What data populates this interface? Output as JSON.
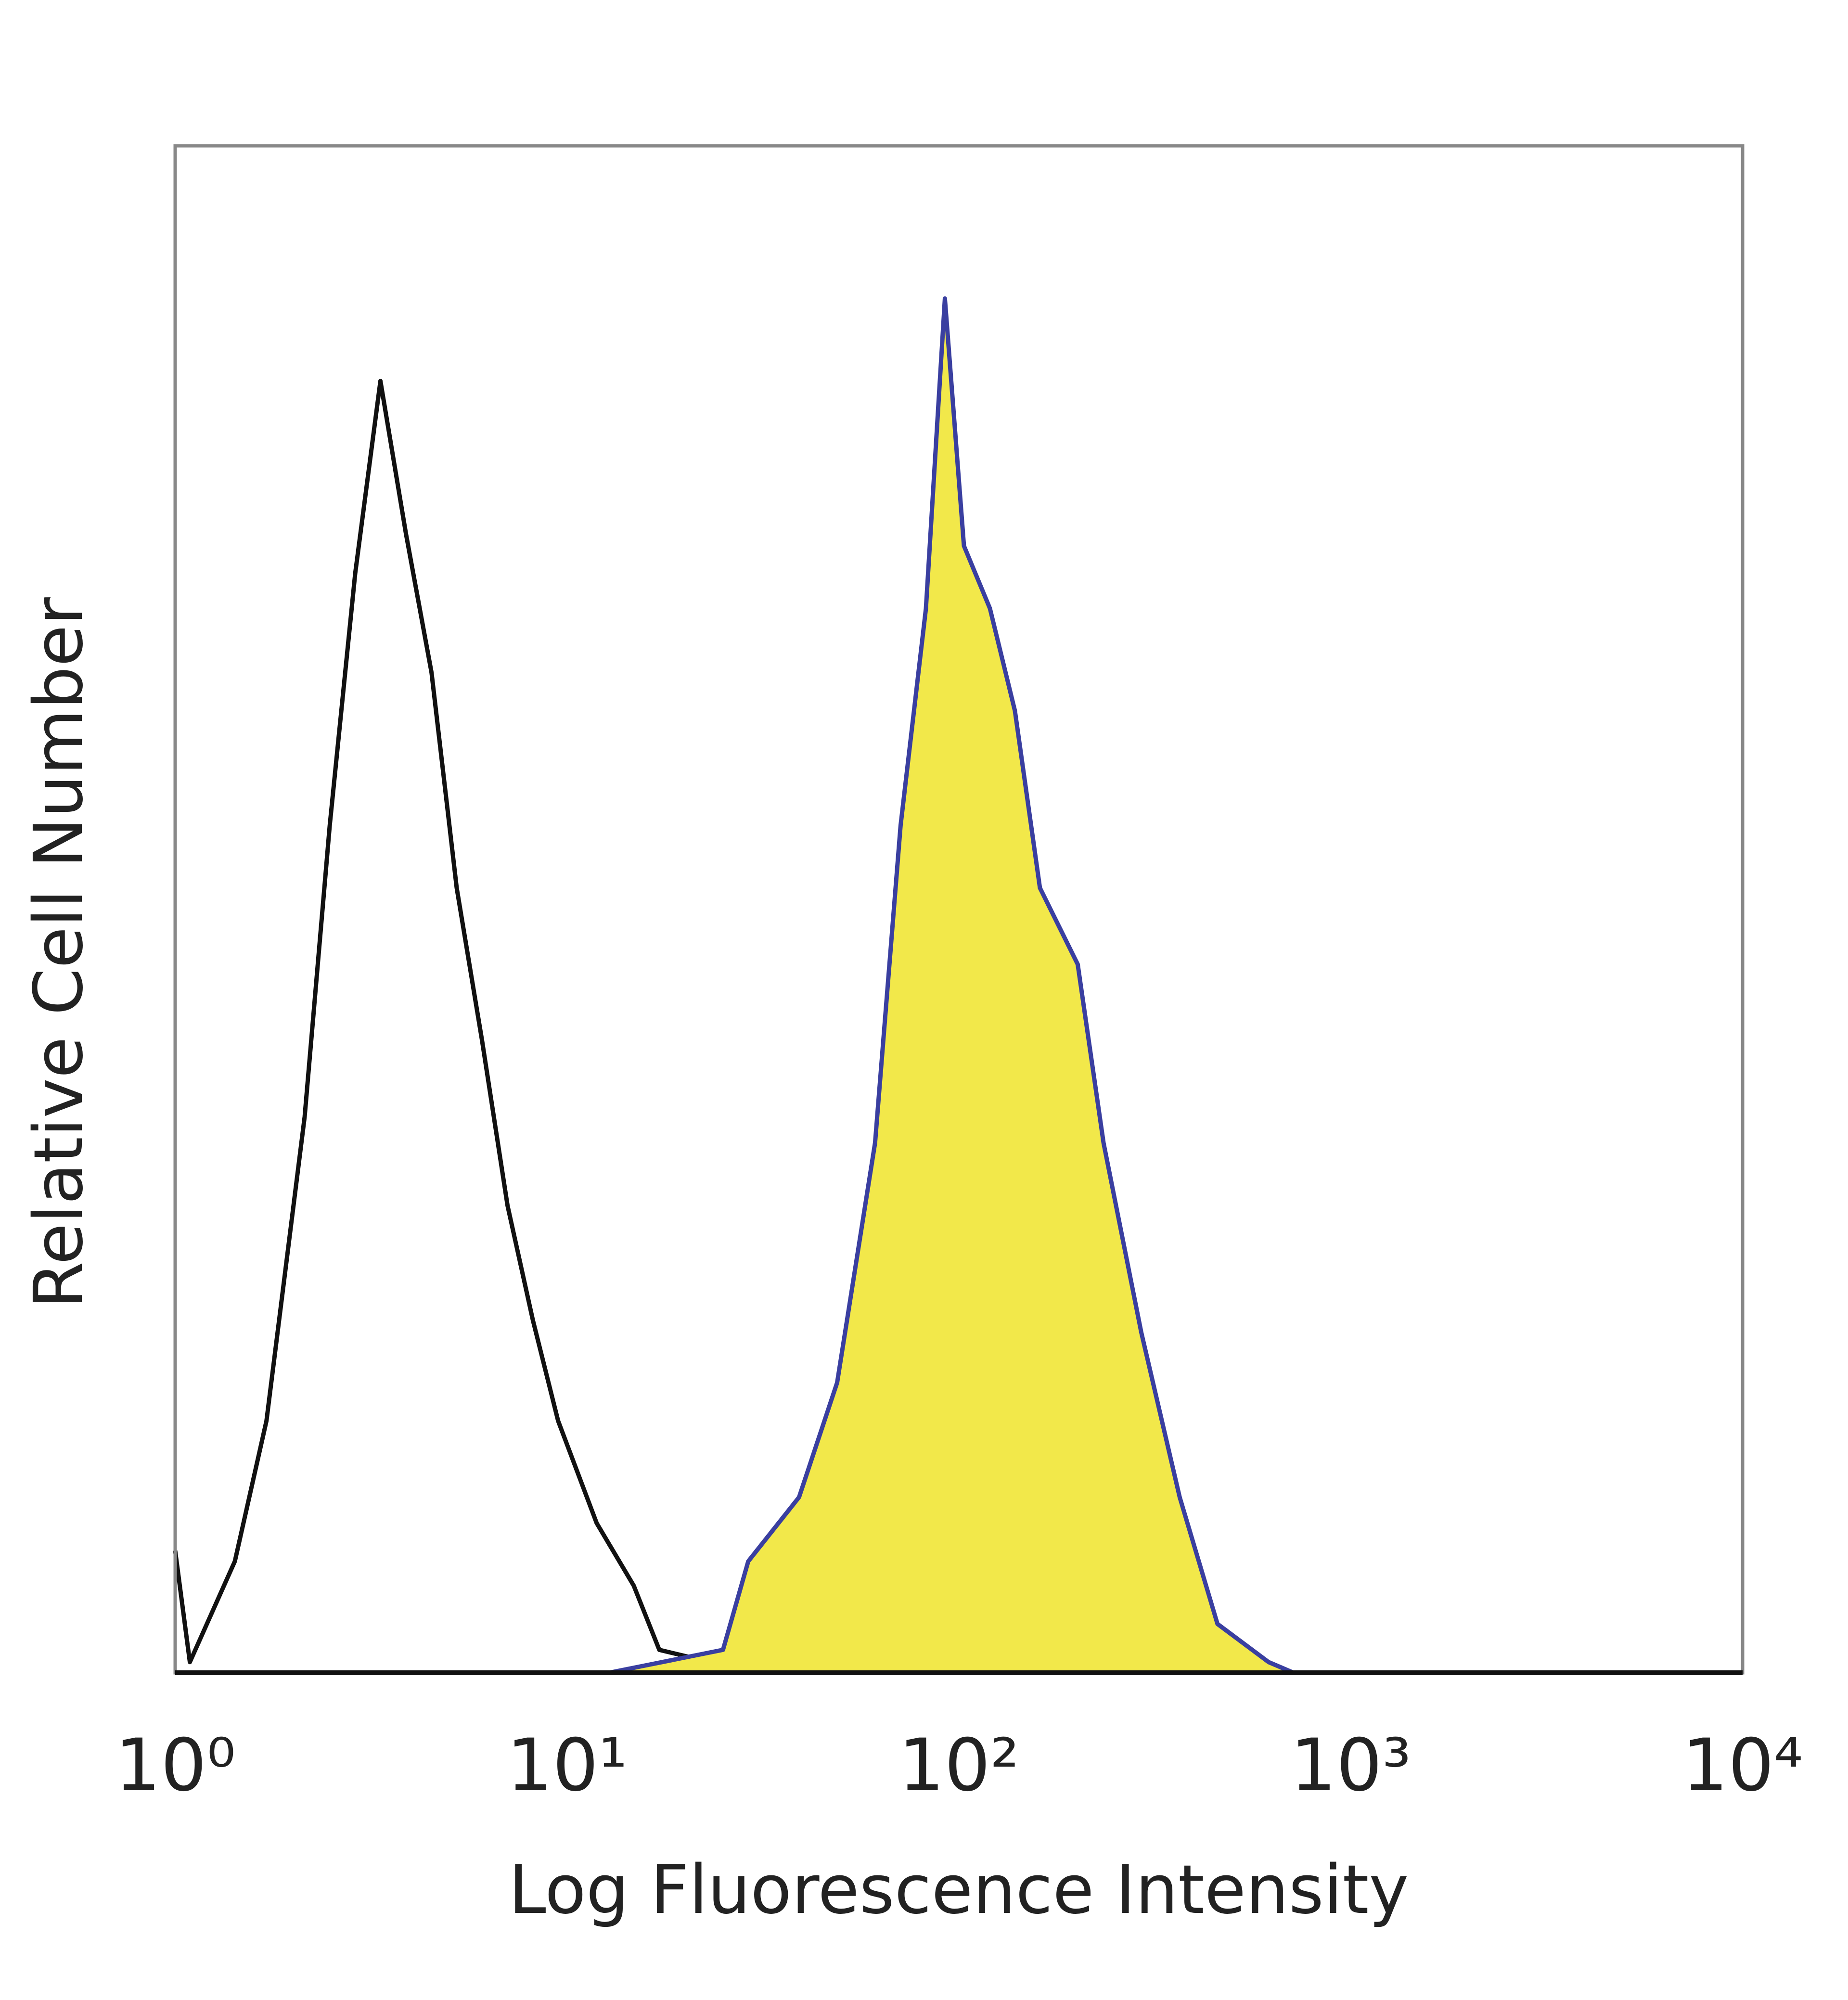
{
  "chart_data": {
    "type": "line",
    "xlabel": "Log Fluorescence Intensity",
    "ylabel": "Relative Cell Number",
    "xscale": "log",
    "xlim": [
      1,
      10000
    ],
    "xticks": [
      {
        "value": 1,
        "label": "10⁰"
      },
      {
        "value": 10,
        "label": "10¹"
      },
      {
        "value": 100,
        "label": "10²"
      },
      {
        "value": 1000,
        "label": "10³"
      },
      {
        "value": 10000,
        "label": "10⁴"
      }
    ],
    "ylim": [
      0,
      100
    ],
    "series": [
      {
        "color": "#111111",
        "fill": "none",
        "x": [
          1,
          1.09,
          1.42,
          1.71,
          2.14,
          2.48,
          2.88,
          3.34,
          3.88,
          4.51,
          5.23,
          6.07,
          7.05,
          8.18,
          9.49,
          11.9,
          14.8,
          17.2,
          23.2,
          31.3
        ],
        "values": [
          8,
          0.7,
          7.3,
          16.5,
          36.4,
          55.5,
          72,
          84.6,
          74.6,
          65.5,
          51.4,
          41.4,
          30.6,
          23.1,
          16.5,
          9.8,
          5.7,
          1.5,
          0.7,
          0
        ]
      },
      {
        "color": "#3a3fa0",
        "fill": "#f2e84a",
        "x": [
          12.8,
          25,
          29,
          39.1,
          48.9,
          61.1,
          71,
          82.4,
          92.1,
          103,
          120,
          139,
          161,
          201,
          234,
          292,
          366,
          457,
          617,
          715
        ],
        "values": [
          0,
          1.5,
          7.3,
          11.5,
          19,
          34.7,
          55.5,
          69.7,
          90,
          73.8,
          69.7,
          63,
          51.4,
          46.4,
          34.7,
          22.3,
          11.5,
          3.2,
          0.7,
          0
        ]
      }
    ]
  }
}
